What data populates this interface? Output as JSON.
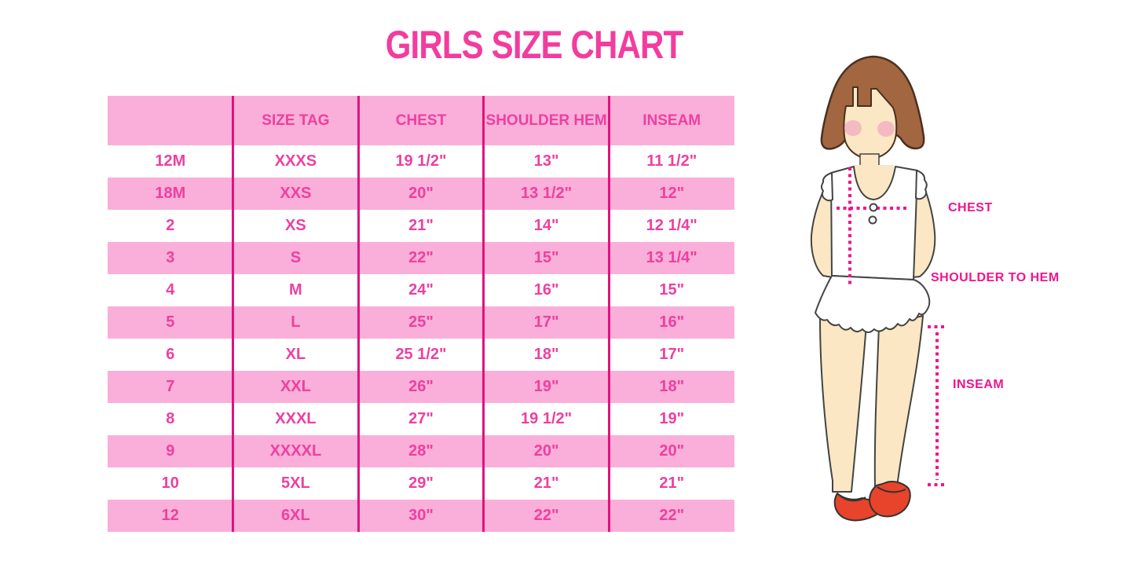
{
  "title": "GIRLS SIZE CHART",
  "colors": {
    "title_pink": "#F23C9E",
    "band_pink": "#F9AFD9",
    "table_text_pink": "#EE3FA0",
    "divider_pink": "#E0127E",
    "annotation_magenta": "#F0148E",
    "hair_brown": "#A26640",
    "skin": "#FBE7C3",
    "shoe_red": "#E8432B"
  },
  "chart_data": {
    "type": "table",
    "title": "GIRLS SIZE CHART",
    "columns": [
      "",
      "SIZE TAG",
      "CHEST",
      "SHOULDER HEM",
      "INSEAM"
    ],
    "rows": [
      [
        "12M",
        "XXXS",
        "19 1/2\"",
        "13\"",
        "11 1/2\""
      ],
      [
        "18M",
        "XXS",
        "20\"",
        "13 1/2\"",
        "12\""
      ],
      [
        "2",
        "XS",
        "21\"",
        "14\"",
        "12 1/4\""
      ],
      [
        "3",
        "S",
        "22\"",
        "15\"",
        "13 1/4\""
      ],
      [
        "4",
        "M",
        "24\"",
        "16\"",
        "15\""
      ],
      [
        "5",
        "L",
        "25\"",
        "17\"",
        "16\""
      ],
      [
        "6",
        "XL",
        "25 1/2\"",
        "18\"",
        "17\""
      ],
      [
        "7",
        "XXL",
        "26\"",
        "19\"",
        "18\""
      ],
      [
        "8",
        "XXXL",
        "27\"",
        "19 1/2\"",
        "19\""
      ],
      [
        "9",
        "XXXXL",
        "28\"",
        "20\"",
        "20\""
      ],
      [
        "10",
        "5XL",
        "29\"",
        "21\"",
        "21\""
      ],
      [
        "12",
        "6XL",
        "30\"",
        "22\"",
        "22\""
      ]
    ],
    "row_striping": "alternating white and pink bands",
    "legend_position": "none",
    "grid": "vertical pink dividers only"
  },
  "figure": {
    "labels": {
      "chest": "CHEST",
      "shoulder_to_hem": "SHOULDER TO HEM",
      "inseam": "INSEAM"
    }
  }
}
